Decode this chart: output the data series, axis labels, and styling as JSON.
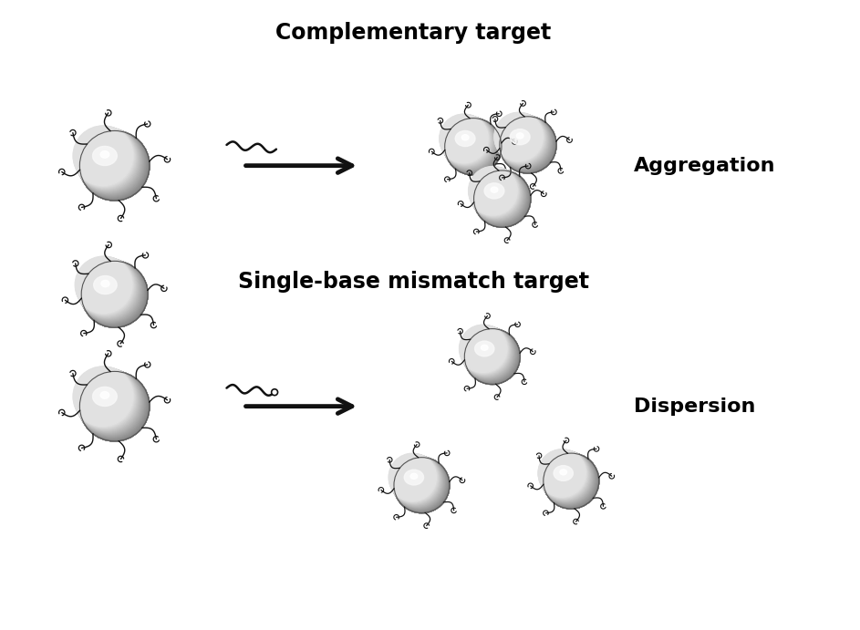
{
  "title_top": "Complementary target",
  "title_mid": "Single-base mismatch target",
  "label_aggregation": "Aggregation",
  "label_dispersion": "Dispersion",
  "bg_color": "#ffffff",
  "text_color": "#000000",
  "sphere_base": "#b8b8b8",
  "sphere_light": "#e8e8e8",
  "sphere_highlight": "#f5f5f5",
  "sphere_shadow": "#888888",
  "sphere_edge": "#555555",
  "dna_color": "#111111",
  "arrow_color": "#111111",
  "title_fontsize": 17,
  "label_fontsize": 16,
  "figsize": [
    9.43,
    6.91
  ]
}
